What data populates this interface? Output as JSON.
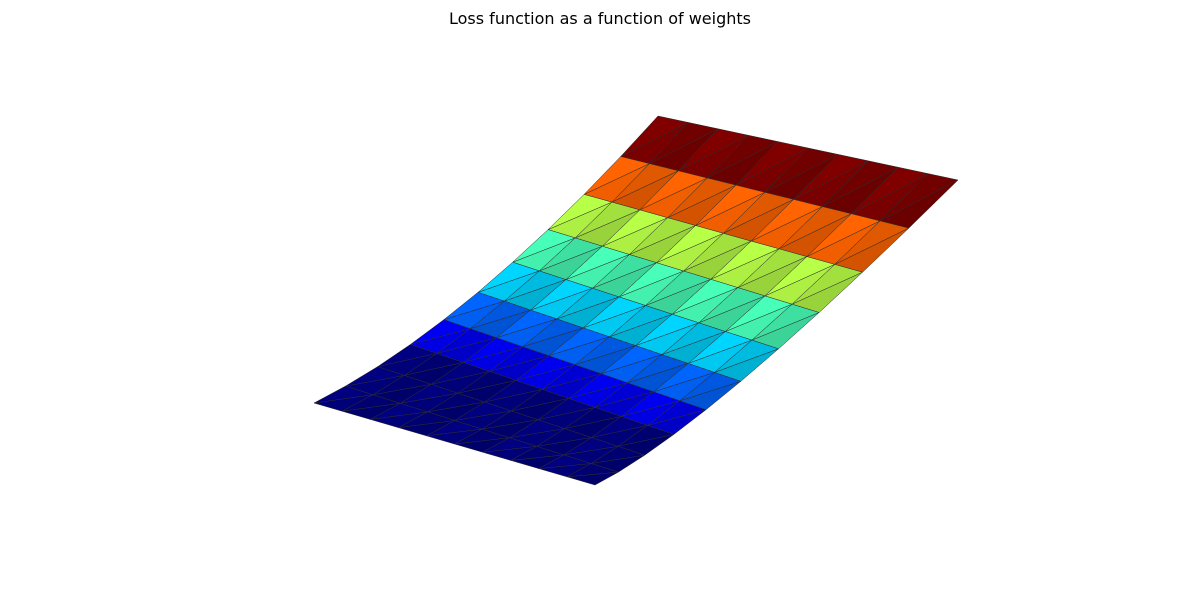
{
  "chart_data": {
    "type": "surface",
    "title": "Loss function as a function of weights",
    "xlabel": "",
    "ylabel": "",
    "zlabel": "",
    "axes_visible": false,
    "grid": false,
    "legend": "none",
    "colormap": "jet",
    "grid_points": [
      10,
      10
    ],
    "surface": "z increases quadratically along one weight axis and is constant along the other",
    "color_bands": 10,
    "color_stops": [
      "#000080",
      "#0000ff",
      "#0080ff",
      "#00ffff",
      "#80ff80",
      "#ffff00",
      "#ff8000",
      "#ff0000",
      "#800000"
    ]
  }
}
